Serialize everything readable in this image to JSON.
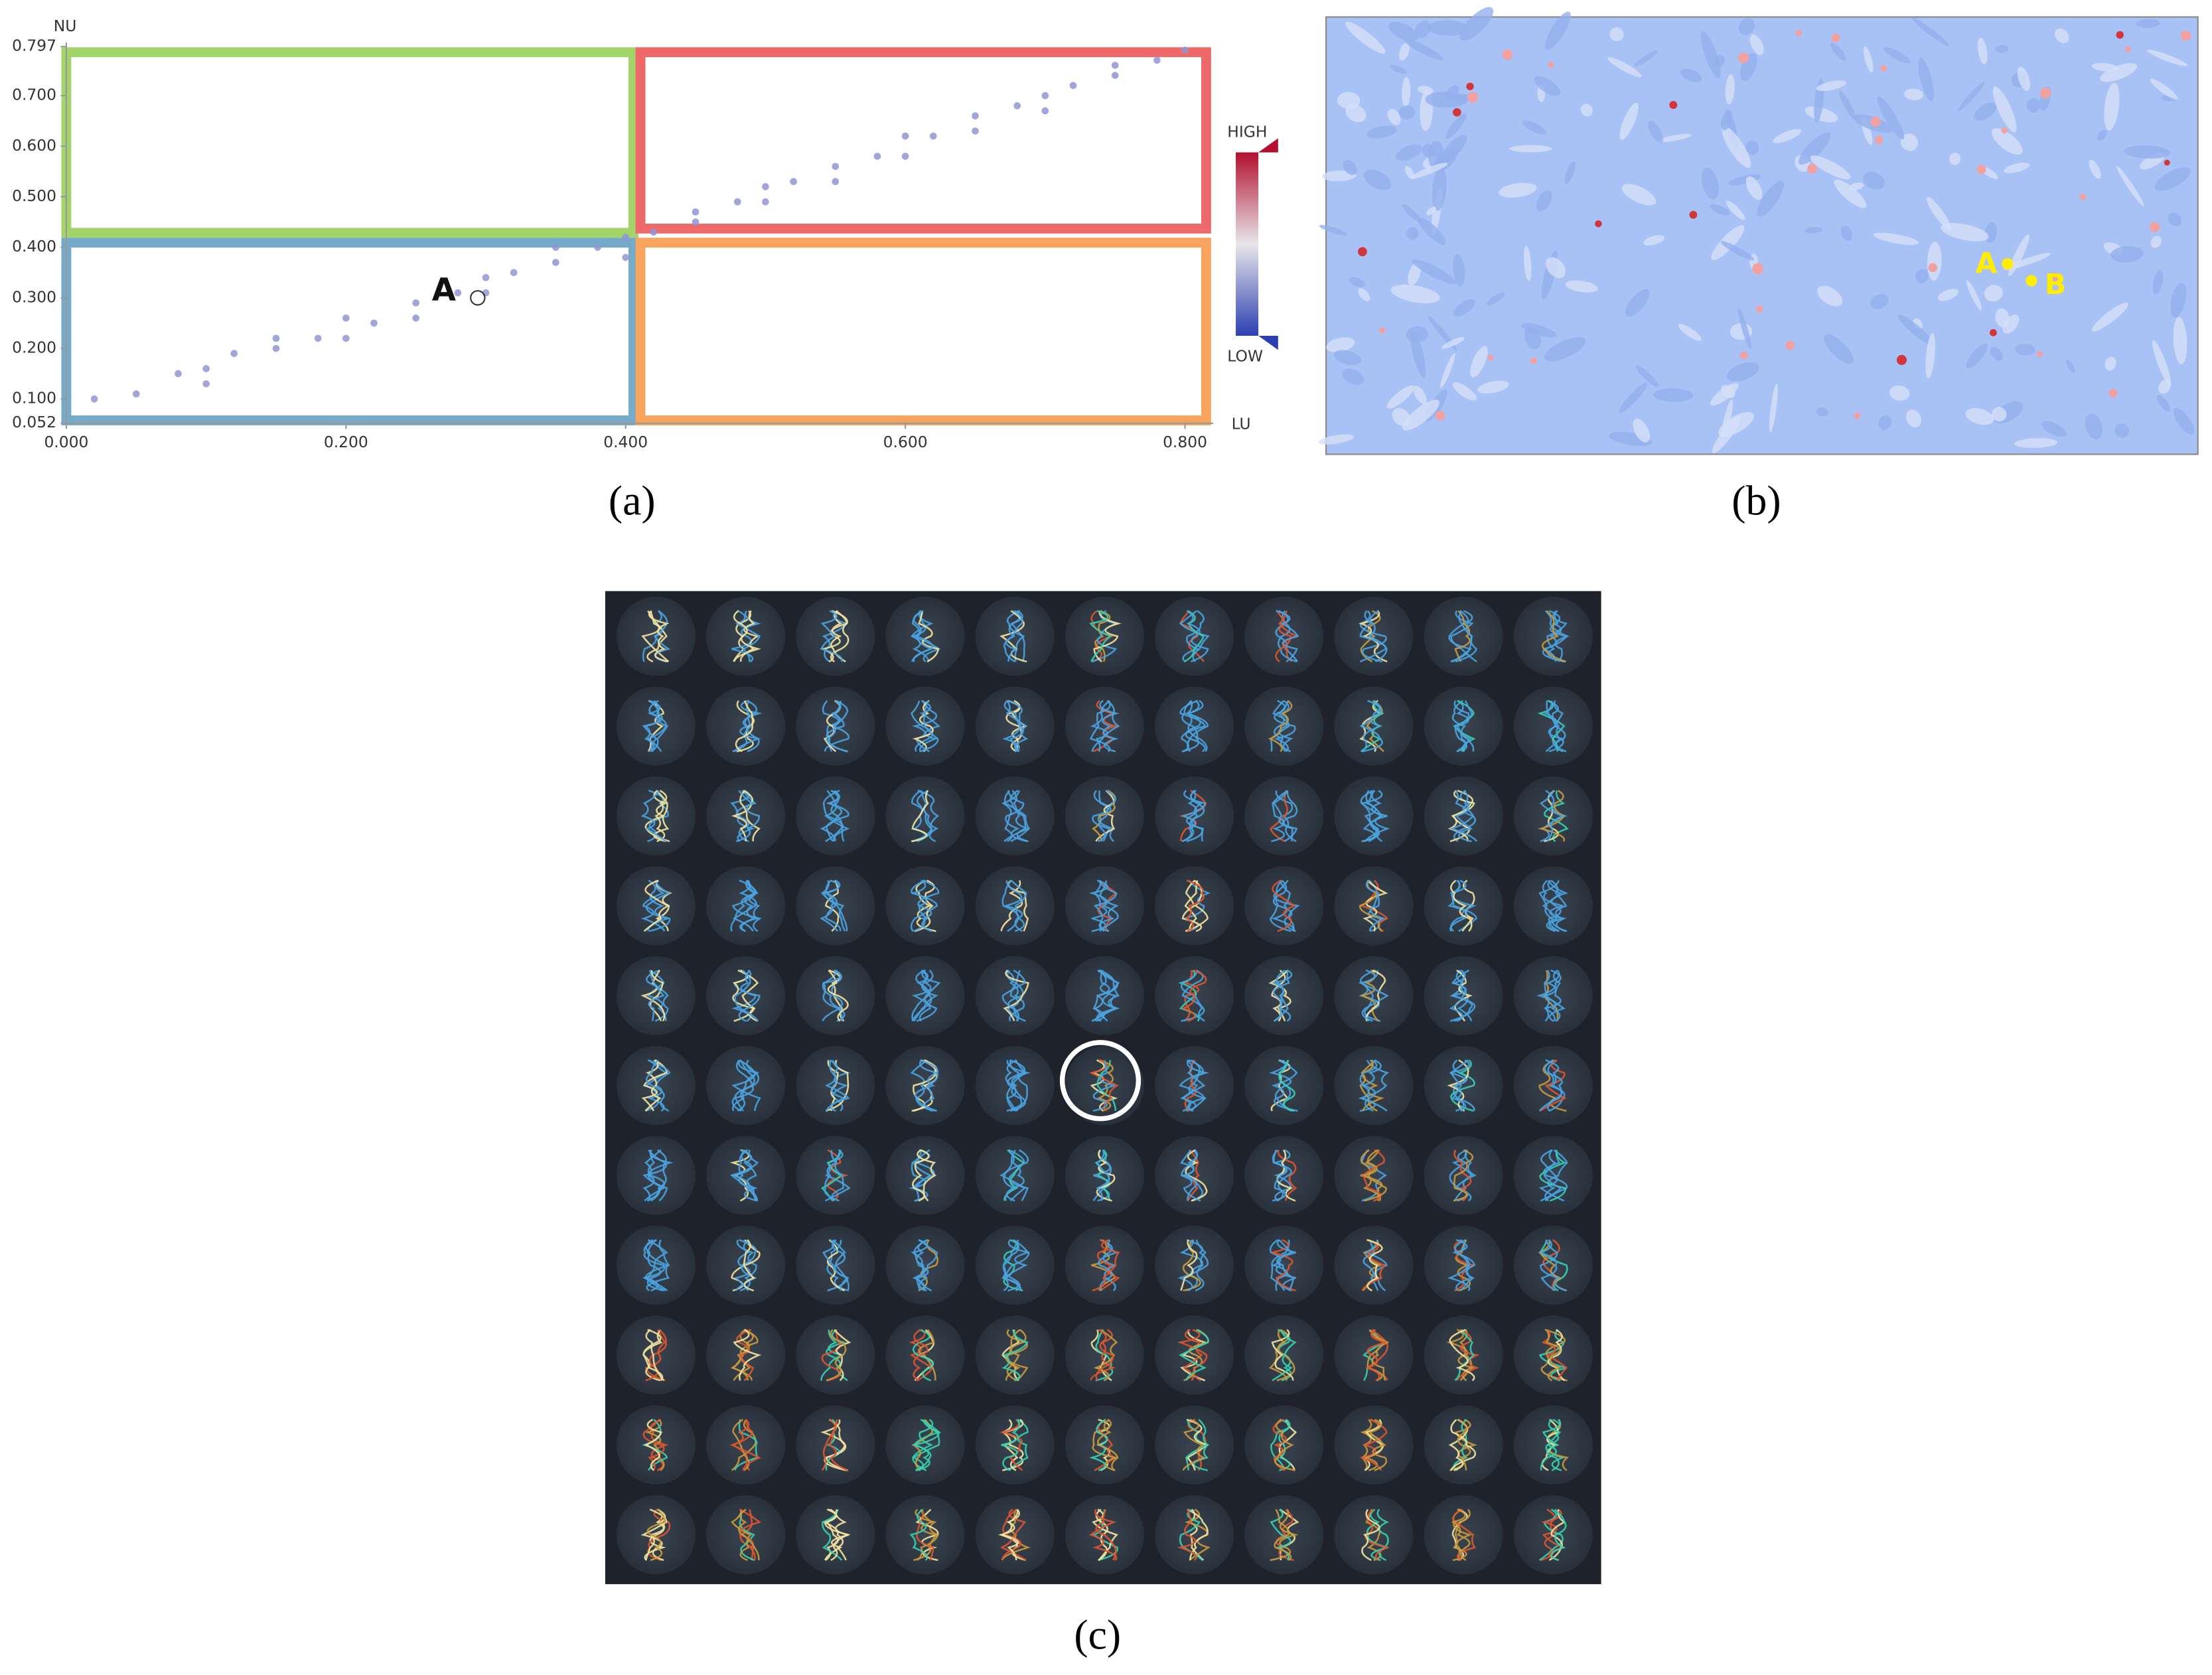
{
  "chart_data": {
    "type": "scatter",
    "y_label": "NU",
    "x_label": "LU",
    "xlim": [
      0,
      0.82
    ],
    "ylim": [
      0.052,
      0.797
    ],
    "xticks": [
      {
        "value": 0,
        "label": "0.000"
      },
      {
        "value": 0.2,
        "label": "0.200"
      },
      {
        "value": 0.4,
        "label": "0.400"
      },
      {
        "value": 0.6,
        "label": "0.600"
      },
      {
        "value": 0.8,
        "label": "0.800"
      }
    ],
    "yticks": [
      {
        "value": 0.052,
        "label": "0.052"
      },
      {
        "value": 0.1,
        "label": "0.100"
      },
      {
        "value": 0.2,
        "label": "0.200"
      },
      {
        "value": 0.3,
        "label": "0.300"
      },
      {
        "value": 0.4,
        "label": "0.400"
      },
      {
        "value": 0.5,
        "label": "0.500"
      },
      {
        "value": 0.6,
        "label": "0.600"
      },
      {
        "value": 0.7,
        "label": "0.700"
      },
      {
        "value": 0.797,
        "label": "0.797"
      }
    ],
    "color": "#8f95d3",
    "x": [
      0.02,
      0.05,
      0.08,
      0.1,
      0.12,
      0.15,
      0.18,
      0.2,
      0.22,
      0.25,
      0.28,
      0.3,
      0.32,
      0.35,
      0.38,
      0.4,
      0.42,
      0.45,
      0.48,
      0.5,
      0.52,
      0.55,
      0.58,
      0.6,
      0.62,
      0.65,
      0.68,
      0.7,
      0.72,
      0.75,
      0.78,
      0.8,
      0.1,
      0.2,
      0.3,
      0.4,
      0.5,
      0.6,
      0.7,
      0.15,
      0.25,
      0.35,
      0.45,
      0.55,
      0.65,
      0.75
    ],
    "y": [
      0.1,
      0.11,
      0.15,
      0.16,
      0.19,
      0.2,
      0.22,
      0.26,
      0.25,
      0.29,
      0.31,
      0.34,
      0.35,
      0.37,
      0.4,
      0.42,
      0.43,
      0.47,
      0.49,
      0.52,
      0.53,
      0.56,
      0.58,
      0.62,
      0.62,
      0.66,
      0.68,
      0.7,
      0.72,
      0.74,
      0.77,
      0.79,
      0.13,
      0.22,
      0.31,
      0.38,
      0.49,
      0.58,
      0.67,
      0.22,
      0.26,
      0.4,
      0.45,
      0.53,
      0.63,
      0.76
    ],
    "annotation": {
      "text": "A",
      "x": 0.27,
      "y": 0.3
    },
    "colorbar": {
      "high": "HIGH",
      "low": "LOW"
    }
  },
  "panel_b": {
    "labels": [
      "A",
      "B"
    ]
  },
  "captions": [
    "(a)",
    "(b)",
    "(c)"
  ]
}
